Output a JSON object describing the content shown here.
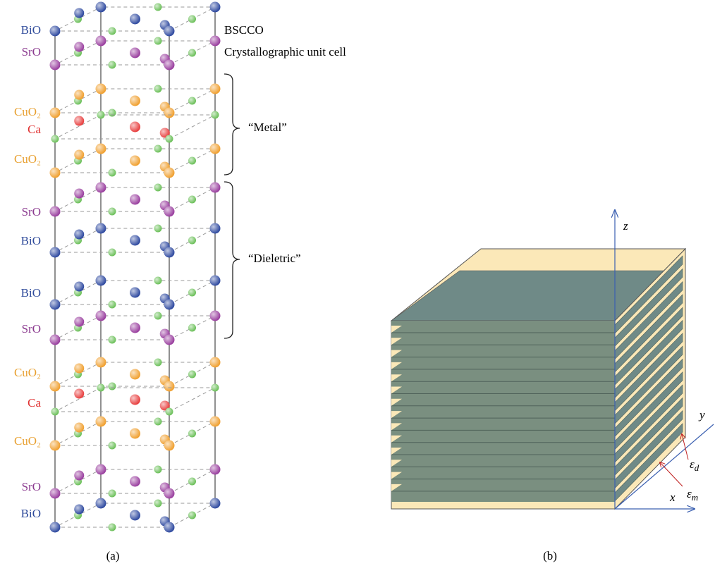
{
  "panel_a": {
    "layers": [
      "BiO",
      "SrO",
      "CuO₂",
      "Ca",
      "CuO₂",
      "SrO",
      "BiO",
      "BiO",
      "SrO",
      "CuO₂",
      "Ca",
      "CuO₂",
      "SrO",
      "BiO"
    ],
    "title": "BSCCO",
    "subtitle": "Crystallographic unit cell",
    "metal": "“Metal”",
    "dielectric": "“Dieletric”",
    "caption": "(a)"
  },
  "panel_b": {
    "z": "z",
    "y": "y",
    "x": "x",
    "eps_d": {
      "symbol": "ε",
      "subscript": "d"
    },
    "eps_m": {
      "symbol": "ε",
      "subscript": "m"
    },
    "caption": "(b)"
  }
}
